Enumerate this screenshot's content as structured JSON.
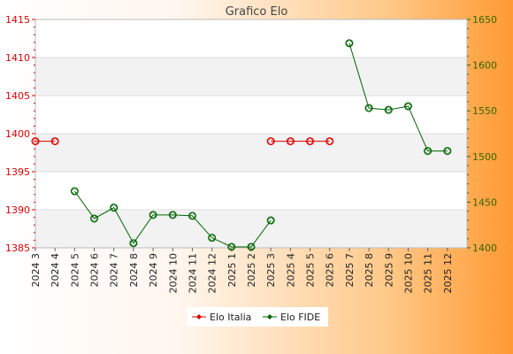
{
  "chart_data": {
    "type": "line",
    "title": "Grafico Elo",
    "categories": [
      "2024 3",
      "2024 4",
      "2024 5",
      "2024 6",
      "2024 7",
      "2024 8",
      "2024 9",
      "2024 10",
      "2024 11",
      "2024 12",
      "2025 1",
      "2025 2",
      "2025 3",
      "2025 4",
      "2025 5",
      "2025 6",
      "2025 7",
      "2025 8",
      "2025 9",
      "2025 10",
      "2025 11",
      "2025 12"
    ],
    "series": [
      {
        "name": "Elo Italia",
        "axis": "left",
        "color": "#dd0000",
        "values": [
          1399,
          1399,
          null,
          null,
          null,
          null,
          null,
          null,
          null,
          null,
          null,
          null,
          1399,
          1399,
          1399,
          1399,
          null,
          null,
          null,
          null,
          null,
          null
        ]
      },
      {
        "name": "Elo FIDE",
        "axis": "right",
        "color": "#006600",
        "values": [
          null,
          null,
          1462,
          1432,
          1444,
          1405,
          1436,
          1436,
          1435,
          1411,
          1401,
          1401,
          1430,
          null,
          null,
          null,
          1624,
          1553,
          1551,
          1555,
          1506,
          1506
        ]
      }
    ],
    "y_left": {
      "range": [
        1385,
        1415
      ],
      "ticks": [
        1385,
        1390,
        1395,
        1400,
        1405,
        1410,
        1415
      ],
      "color": "#dd0000"
    },
    "y_right": {
      "range": [
        1400,
        1650
      ],
      "ticks": [
        1400,
        1450,
        1500,
        1550,
        1600,
        1650
      ],
      "color": "#336600"
    },
    "grid": true,
    "legend": "bottom"
  }
}
